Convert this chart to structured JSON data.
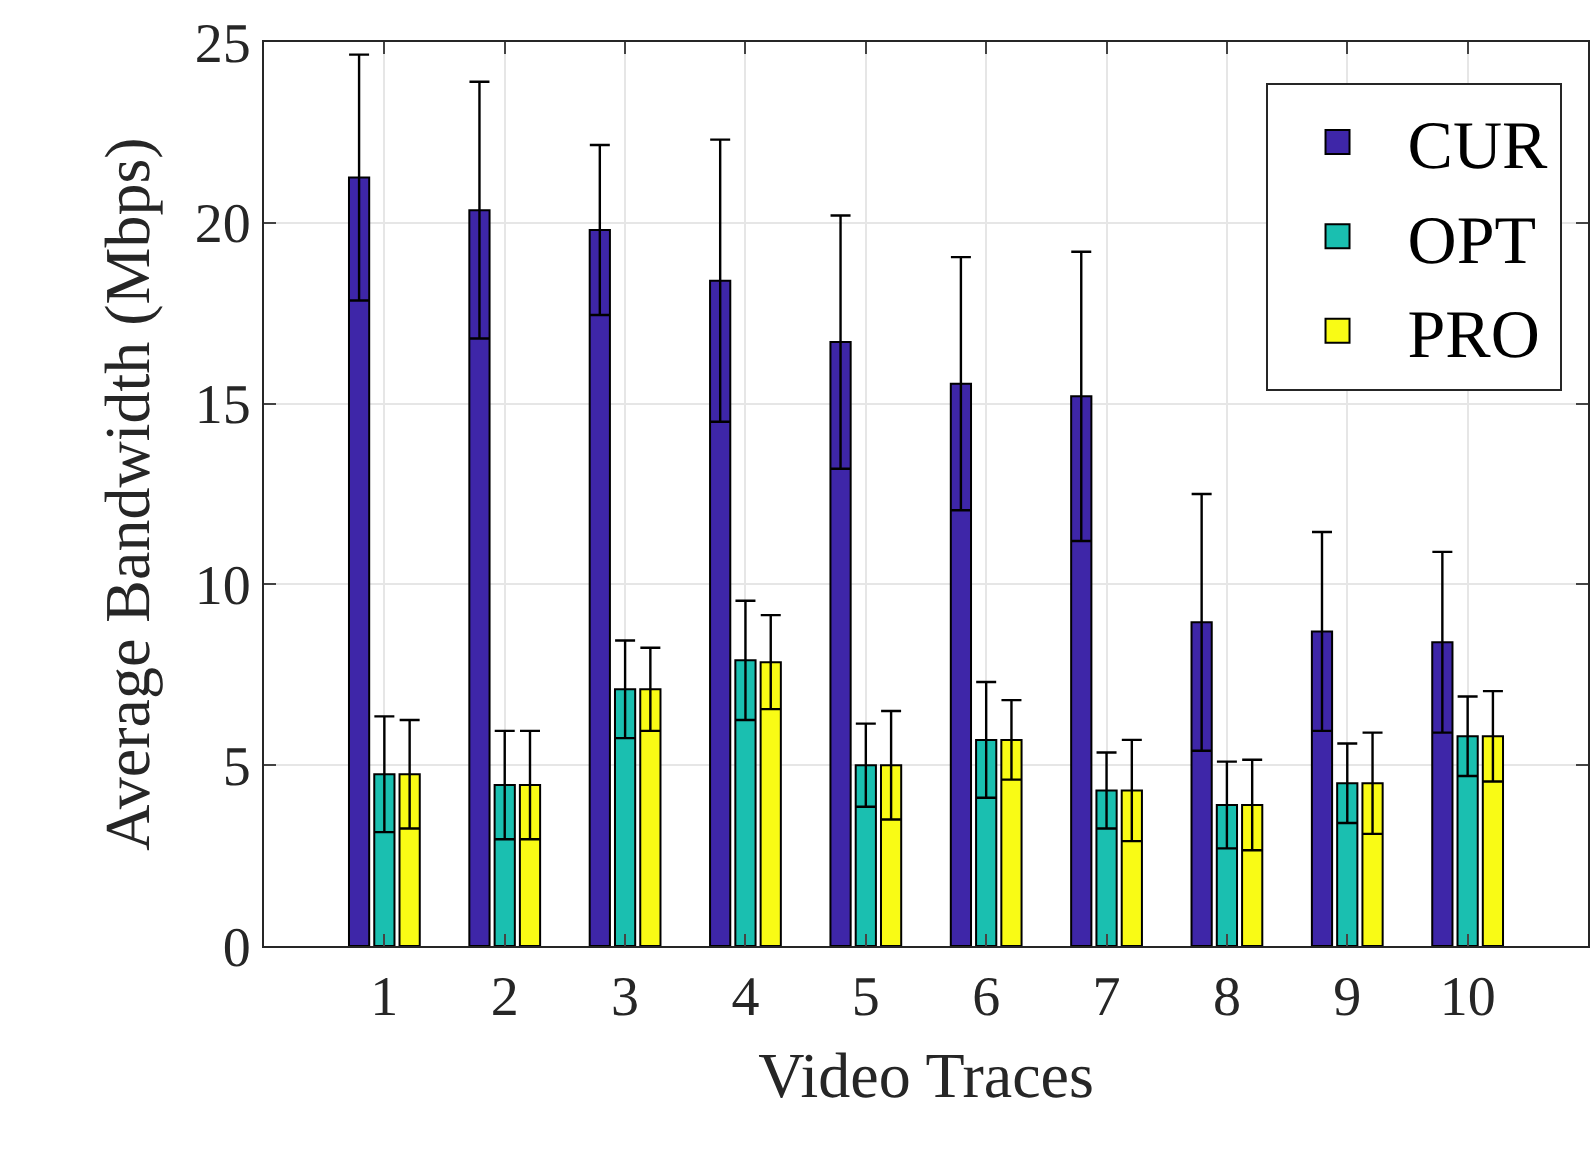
{
  "chart_data": {
    "type": "bar",
    "xlabel": "Video Traces",
    "ylabel": "Average Bandwidth (Mbps)",
    "categories": [
      "1",
      "2",
      "3",
      "4",
      "5",
      "6",
      "7",
      "8",
      "9",
      "10"
    ],
    "series": [
      {
        "name": "CUR",
        "color": "#3e26a8",
        "values": [
          21.25,
          20.35,
          19.8,
          18.4,
          16.7,
          15.55,
          15.2,
          8.95,
          8.7,
          8.4
        ],
        "errors": [
          3.4,
          3.55,
          2.35,
          3.9,
          3.5,
          3.5,
          4.0,
          3.55,
          2.75,
          2.5
        ]
      },
      {
        "name": "OPT",
        "color": "#1abfb0",
        "values": [
          4.75,
          4.45,
          7.1,
          7.9,
          5.0,
          5.7,
          4.3,
          3.9,
          4.5,
          5.8
        ],
        "errors": [
          1.6,
          1.5,
          1.35,
          1.65,
          1.15,
          1.6,
          1.05,
          1.2,
          1.1,
          1.1
        ]
      },
      {
        "name": "PRO",
        "color": "#f9fb15",
        "values": [
          4.75,
          4.45,
          7.1,
          7.85,
          5.0,
          5.7,
          4.3,
          3.9,
          4.5,
          5.8
        ],
        "errors": [
          1.5,
          1.5,
          1.15,
          1.3,
          1.5,
          1.1,
          1.4,
          1.25,
          1.4,
          1.25
        ]
      }
    ],
    "ylim": [
      0,
      25
    ],
    "yticks": [
      0,
      5,
      10,
      15,
      20,
      25
    ],
    "grid": true,
    "legend": "top right"
  }
}
